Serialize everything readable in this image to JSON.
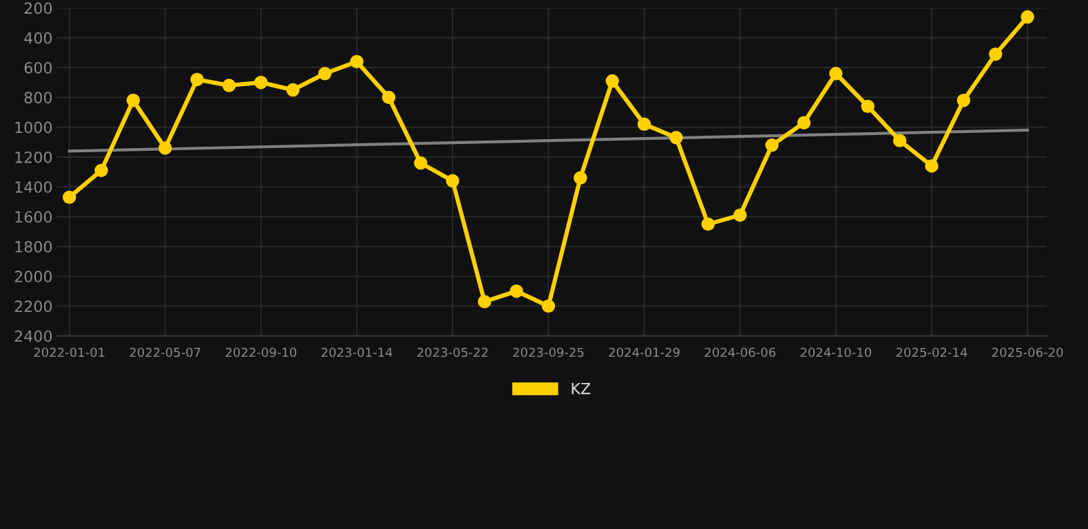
{
  "chart_data": {
    "type": "line",
    "categories": [
      "2022-01-01",
      null,
      null,
      "2022-05-07",
      null,
      null,
      "2022-09-10",
      null,
      null,
      "2023-01-14",
      null,
      null,
      "2023-05-22",
      null,
      null,
      "2023-09-25",
      null,
      null,
      "2024-01-29",
      null,
      null,
      "2024-06-06",
      null,
      null,
      "2024-10-10",
      null,
      null,
      "2025-02-14",
      null,
      null,
      "2025-06-20"
    ],
    "series": [
      {
        "name": "KZ",
        "color": "#ffd000",
        "marker": "circle",
        "values": [
          1470,
          1290,
          820,
          1140,
          680,
          720,
          700,
          750,
          640,
          560,
          800,
          1240,
          1360,
          2170,
          2100,
          2200,
          1340,
          690,
          980,
          1070,
          1650,
          1590,
          1120,
          970,
          640,
          860,
          1090,
          1260,
          820,
          510,
          260
        ]
      },
      {
        "type": "line",
        "color": "#808080",
        "marker": "none",
        "values": [
          1160,
          null,
          null,
          null,
          null,
          null,
          null,
          null,
          null,
          null,
          null,
          null,
          null,
          null,
          null,
          null,
          null,
          null,
          null,
          null,
          null,
          null,
          null,
          null,
          null,
          null,
          null,
          null,
          null,
          null,
          1020
        ]
      }
    ],
    "ylim": [
      2400,
      200
    ],
    "yticks": [
      200,
      400,
      600,
      800,
      1000,
      1200,
      1400,
      1600,
      1800,
      2000,
      2200,
      2400
    ],
    "grid": true,
    "legend": "bottom",
    "line_style": "solid"
  }
}
